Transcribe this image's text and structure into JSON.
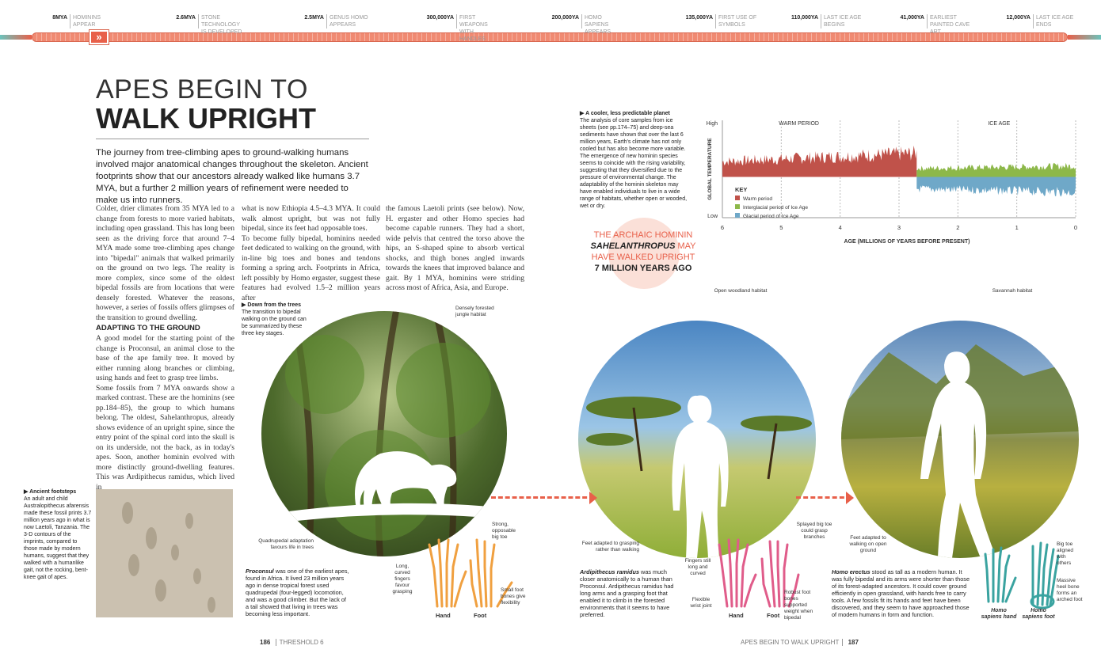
{
  "timeline": {
    "arrow_glyph": "»",
    "markers": [
      {
        "date": "8MYA",
        "label": "HOMININS APPEAR"
      },
      {
        "date": "2.6MYA",
        "label": "STONE TECHNOLOGY IS DEVELOPED"
      },
      {
        "date": "2.5MYA",
        "label": "GENUS HOMO APPEARS"
      },
      {
        "date": "300,000YA",
        "label": "FIRST WEAPONS WITH HANDLES"
      },
      {
        "date": "200,000YA",
        "label": "HOMO SAPIENS APPEARS"
      },
      {
        "date": "135,000YA",
        "label": "FIRST USE OF SYMBOLS"
      },
      {
        "date": "110,000YA",
        "label": "LAST ICE AGE BEGINS"
      },
      {
        "date": "41,000YA",
        "label": "EARLIEST PAINTED CAVE ART"
      },
      {
        "date": "12,000YA",
        "label": "LAST ICE AGE ENDS"
      }
    ]
  },
  "title": {
    "line1": "APES BEGIN TO",
    "line2": "WALK UPRIGHT"
  },
  "intro": "The journey from tree-climbing apes to ground-walking humans involved major anatomical changes throughout the skeleton. Ancient footprints show that our ancestors already walked like humans 3.7 MYA, but a further 2 million years of refinement were needed to make us into runners.",
  "body": {
    "col1": "Colder, drier climates from 35 MYA led to a change from forests to more varied habitats, including open grassland. This has long been seen as the driving force that around 7–4 MYA made some tree-climbing apes change into \"bipedal\" animals that walked primarily on the ground on two legs. The reality is more complex, since some of the oldest bipedal fossils are from locations that were densely forested. Whatever the reasons, however, a series of fossils offers glimpses of the transition to ground dwelling.",
    "col1_heading": "ADAPTING TO THE GROUND",
    "col1b": "A good model for the starting point of the change is Proconsul, an animal close to the base of the ape family tree. It moved by either running along branches or climbing, using hands and feet to grasp tree limbs.\n    Some fossils from 7 MYA onwards show a marked contrast. These are the hominins (see pp.184–85), the group to which humans belong. The oldest, Sahelanthropus, already shows evidence of an upright spine, since the entry point of the spinal cord into the skull is on its underside, not the back, as in today's apes. Soon, another hominin evolved with more distinctly ground-dwelling features. This was Ardipithecus ramidus, which lived in",
    "col2": "what is now Ethiopia 4.5–4.3 MYA. It could walk almost upright, but was not fully bipedal, since its feet had opposable toes.\n    To become fully bipedal, hominins needed feet dedicated to walking on the ground, with in-line big toes and bones and tendons forming a spring arch. Footprints in Africa, left possibly by Homo ergaster, suggest these features had evolved 1.5–2 million years after",
    "col3": "the famous Laetoli prints (see below). Now, H. ergaster and other Homo species had become capable runners. They had a short, wide pelvis that centred the torso above the hips, an S-shaped spine to absorb vertical shocks, and thigh bones angled inwards towards the knees that improved balance and gait. By 1 MYA, hominins were striding across most of Africa, Asia, and Europe."
  },
  "captions": {
    "footsteps_title": "Ancient footsteps",
    "footsteps": "An adult and child Australopithecus afarensis made these fossil prints 3.7 million years ago in what is now Laetoli, Tanzania. The 3-D contours of the imprints, compared to those made by modern humans, suggest that they walked with a humanlike gait, not the rocking, bent-knee gait of apes.",
    "trees_title": "Down from the trees",
    "trees": "The transition to bipedal walking on the ground can be summarized by these three key stages.",
    "climate_title": "A cooler, less predictable planet",
    "climate": "The analysis of core samples from ice sheets (see pp.174–75) and deep-sea sediments have shown that over the last 6 million years, Earth's climate has not only cooled but has also become more variable. The emergence of new hominin species seems to coincide with the rising variability, suggesting that they diversified due to the pressure of environmental change. The adaptability of the hominin skeleton may have enabled individuals to live in a wide range of habitats, whether open or wooded, wet or dry.",
    "proconsul_name": "Proconsul",
    "proconsul": " was one of the earliest apes, found in Africa. It lived 23 million years ago in dense tropical forest used quadrupedal (four-legged) locomotion, and was a good climber. But the lack of a tail showed that living in trees was becoming less important.",
    "ardi_name": "Ardipithecus ramidus",
    "ardi": " was much closer anatomically to a human than Proconsul. Ardipithecus ramidus had long arms and a grasping foot that enabled it to climb in the forested environments that it seems to have preferred.",
    "erectus_name": "Homo erectus",
    "erectus": " stood as tall as a modern human. It was fully bipedal and its arms were shorter than those of its forest-adapted ancestors. It could cover ground efficiently in open grassland, with hands free to carry tools. A few fossils fit its hands and feet have been discovered, and they seem to have approached those of modern humans in form and function."
  },
  "quote": {
    "line1": "THE ARCHAIC HOMININ",
    "name": "SAHELANTHROPUS",
    "line2": " MAY",
    "line3": "HAVE WALKED UPRIGHT",
    "line4": "7 MILLION YEARS AGO"
  },
  "labels": {
    "jungle": "Densely forested jungle habitat",
    "woodland": "Open woodland habitat",
    "savannah": "Savannah habitat",
    "quadrupedal": "Quadrupedal adaptation favours life in trees",
    "feet_grasp": "Feet adapted to grasping rather than walking",
    "feet_walk": "Feet adapted to walking on open ground",
    "strong_toe": "Strong, opposable big toe",
    "long_fingers": "Long, curved fingers favour grasping",
    "small_foot": "Small foot bones give flexibility",
    "fingers_still": "Fingers still long and curved",
    "flexible_wrist": "Flexible wrist joint",
    "splayed_toe": "Splayed big toe could grasp branches",
    "robust_foot": "Robust foot bones supported weight when bipedal",
    "big_toe_aligned": "Big toe aligned with others",
    "massive_heel": "Massive heel bone forms an arched foot",
    "hand": "Hand",
    "foot": "Foot",
    "hs_hand": "Homo sapiens hand",
    "hs_foot": "Homo sapiens foot"
  },
  "chart_data": {
    "type": "area",
    "title": "",
    "xlabel": "AGE (MILLIONS OF YEARS BEFORE PRESENT)",
    "ylabel": "GLOBAL TEMPERATURE",
    "x_ticks": [
      "6",
      "5",
      "4",
      "3",
      "2",
      "1",
      "0"
    ],
    "y_ticks": [
      "High",
      "Low"
    ],
    "xlim": [
      6,
      0
    ],
    "ylim": [
      "Low",
      "High"
    ],
    "period_labels": [
      "WARM PERIOD",
      "ICE AGE"
    ],
    "key_title": "KEY",
    "series": [
      {
        "name": "Warm period",
        "color": "#c0524a",
        "x_range": [
          6,
          2.7
        ],
        "approx_level": 0.7
      },
      {
        "name": "Interglacial period of Ice Age",
        "color": "#8db84a",
        "x_range": [
          2.7,
          0
        ],
        "approx_level": 0.25
      },
      {
        "name": "Glacial period of Ice Age",
        "color": "#6fa8c8",
        "x_range": [
          2.7,
          0
        ],
        "approx_level": -0.35
      }
    ],
    "grid": true
  },
  "page_footer": {
    "left_num": "186",
    "left_text": "THRESHOLD 6",
    "right_text": "APES BEGIN TO WALK UPRIGHT",
    "right_num": "187"
  },
  "colors": {
    "accent": "#e8604a",
    "ribbon": "#f08a72",
    "teal": "#3aa09a",
    "bone_orange": "#f0a040",
    "bone_pink": "#e05c8a",
    "bone_teal": "#3aa3a0"
  }
}
